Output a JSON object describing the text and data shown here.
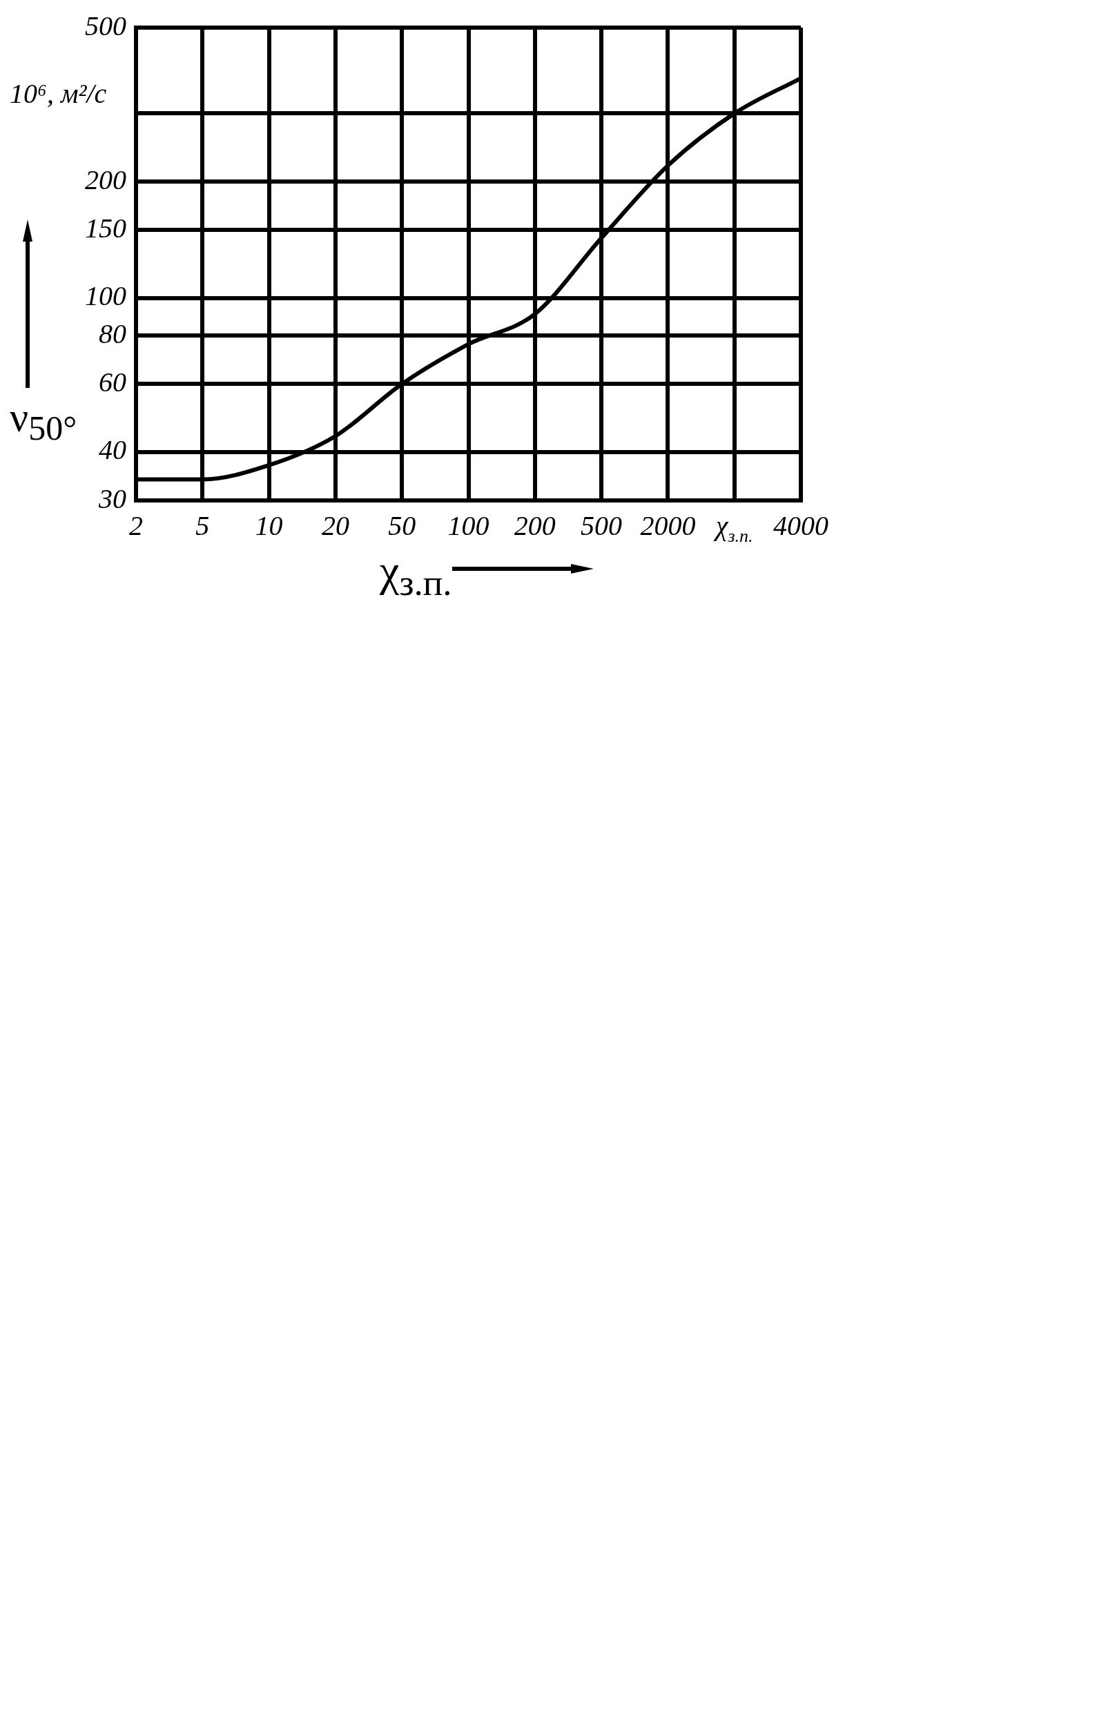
{
  "chart_data": {
    "type": "line",
    "xlabel": "χ$_{з.п.}$",
    "ylabel": "ν$_{50°}$",
    "annotations": [
      "10⁶, м²/с"
    ],
    "categories": [
      "2",
      "5",
      "10",
      "20",
      "50",
      "100",
      "200",
      "500",
      "2000",
      "χ$_{з.п.}$",
      "4000"
    ],
    "series": [
      {
        "color": "#000000",
        "values": [
          34,
          34,
          37,
          44,
          60,
          76,
          91,
          143,
          220,
          300,
          370
        ]
      }
    ],
    "log": "y",
    "ylim": [
      30,
      500
    ],
    "yticks": [
      30,
      40,
      60,
      80,
      100,
      150,
      200,
      {
        "value": 300,
        "label": null
      },
      500
    ],
    "grid": true,
    "legend": false,
    "marker": "none",
    "line_style": "solid"
  }
}
